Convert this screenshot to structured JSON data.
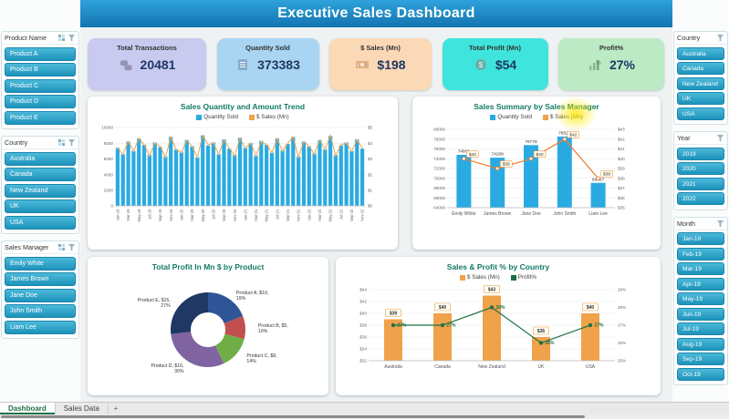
{
  "header": {
    "title": "Executive Sales Dashboard"
  },
  "kpis": [
    {
      "label": "Total Transactions",
      "value": "20481",
      "icon": "coins-icon",
      "bg": "#C9CAEF"
    },
    {
      "label": "Quantity Sold",
      "value": "373383",
      "icon": "clipboard-icon",
      "bg": "#A9D5F2"
    },
    {
      "label": "$ Sales (Mn)",
      "value": "$198",
      "icon": "banknote-icon",
      "bg": "#FBD9B6"
    },
    {
      "label": "Total Profit (Mn)",
      "value": "$54",
      "icon": "dollar-coin-icon",
      "bg": "#3FE5DC"
    },
    {
      "label": "Profit%",
      "value": "27%",
      "icon": "percent-chart-icon",
      "bg": "#BBEAC5"
    }
  ],
  "slicers": {
    "left": [
      {
        "title": "Product Name",
        "items": [
          "Product A",
          "Product B",
          "Product C",
          "Product D",
          "Product E"
        ]
      },
      {
        "title": "Country",
        "items": [
          "Australia",
          "Canada",
          "New Zealand",
          "UK",
          "USA"
        ]
      },
      {
        "title": "Sales Manager",
        "items": [
          "Emily White",
          "James Brown",
          "Jane Doe",
          "John Smith",
          "Liam Lee"
        ]
      }
    ],
    "right": [
      {
        "title": "Country",
        "items": [
          "Australia",
          "Canada",
          "New Zealand",
          "UK",
          "USA"
        ]
      },
      {
        "title": "Year",
        "items": [
          "2019",
          "2020",
          "2021",
          "2022"
        ]
      },
      {
        "title": "Month",
        "items": [
          "Jan-19",
          "Feb-19",
          "Mar-19",
          "Apr-19",
          "May-19",
          "Jun-19",
          "Jul-19",
          "Aug-19",
          "Sep-19",
          "Oct-19"
        ]
      }
    ]
  },
  "tabs": {
    "items": [
      "Dashboard",
      "Sales Data"
    ],
    "active_index": 0,
    "add_label": "+"
  },
  "colors": {
    "banner_top": "#2EA2DB",
    "banner_bottom": "#1374B0",
    "bar_blue": "#29ABE2",
    "line_orange": "#F0A24B",
    "line_green": "#1E7145",
    "slicer_teal": "#1D93BB",
    "chart_title": "#117A65"
  },
  "chart_data": [
    {
      "id": "trend",
      "type": "bar",
      "title": "Sales Quantity and Amount Trend",
      "legend": [
        "Quantity Sold",
        "$ Sales (Mn)"
      ],
      "x": [
        "Jan-19",
        "Feb-19",
        "Mar-19",
        "Apr-19",
        "May-19",
        "Jun-19",
        "Jul-19",
        "Aug-19",
        "Sep-19",
        "Oct-19",
        "Nov-19",
        "Dec-19",
        "Jan-20",
        "Feb-20",
        "Mar-20",
        "Apr-20",
        "May-20",
        "Jun-20",
        "Jul-20",
        "Aug-20",
        "Sep-20",
        "Oct-20",
        "Nov-20",
        "Dec-20",
        "Jan-21",
        "Feb-21",
        "Mar-21",
        "Apr-21",
        "May-21",
        "Jun-21",
        "Jul-21",
        "Aug-21",
        "Sep-21",
        "Oct-21",
        "Nov-21",
        "Dec-21",
        "Jan-22",
        "Feb-22",
        "Mar-22",
        "Apr-22",
        "May-22",
        "Jun-22",
        "Jul-22",
        "Aug-22",
        "Sep-22",
        "Oct-22",
        "Nov-22"
      ],
      "series": [
        {
          "name": "Quantity Sold",
          "type": "bar",
          "axis": "left",
          "values": [
            7400,
            6600,
            8200,
            7000,
            8600,
            7800,
            6500,
            8100,
            7500,
            6300,
            8800,
            7200,
            6900,
            8400,
            7600,
            6200,
            9000,
            7700,
            8100,
            6600,
            8500,
            7300,
            6500,
            8700,
            7400,
            8000,
            6400,
            8300,
            7800,
            6800,
            8600,
            7100,
            7900,
            8800,
            6300,
            8200,
            7600,
            6700,
            8400,
            7200,
            8900,
            6500,
            7700,
            8100,
            7000,
            8500,
            7300
          ]
        },
        {
          "name": "$ Sales (Mn)",
          "type": "line",
          "axis": "right",
          "values": [
            3.7,
            3.3,
            4.1,
            3.5,
            4.3,
            3.9,
            3.2,
            4.0,
            3.8,
            3.1,
            4.4,
            3.6,
            3.4,
            4.2,
            3.8,
            3.1,
            4.5,
            3.9,
            4.0,
            3.3,
            4.2,
            3.7,
            3.2,
            4.3,
            3.7,
            4.0,
            3.2,
            4.1,
            3.9,
            3.4,
            4.3,
            3.5,
            4.0,
            4.4,
            3.1,
            4.1,
            3.8,
            3.3,
            4.2,
            3.6,
            4.5,
            3.2,
            3.9,
            4.0,
            3.5,
            4.2,
            3.7
          ]
        }
      ],
      "ylim_left": [
        0,
        10000
      ],
      "ytick_left": 2000,
      "ylim_right": [
        0,
        5
      ],
      "ytick_right": 1,
      "grid": true,
      "legend_position": "top",
      "x_label_every": 2
    },
    {
      "id": "manager",
      "type": "bar",
      "title": "Sales Summary by Sales Manager",
      "legend": [
        "Quantity Sold",
        "$ Sales (Mn)"
      ],
      "categories": [
        "Emily White",
        "James Brown",
        "Jane Doe",
        "John Smith",
        "Liam Lee"
      ],
      "series": [
        {
          "name": "Quantity Sold",
          "type": "bar",
          "values": [
            74801,
            74208,
            76778,
            78534,
            69067
          ],
          "labels": [
            "74801",
            "74208",
            "76778",
            "78534",
            "69067"
          ]
        },
        {
          "name": "$ Sales (Mn)",
          "type": "line",
          "values": [
            40,
            39,
            40,
            42,
            38
          ],
          "labels": [
            "$40",
            "$39",
            "$40",
            "$42",
            "$38"
          ]
        }
      ],
      "ylim_left": [
        64000,
        80000
      ],
      "ytick_left": 2000,
      "ylim_right": [
        35,
        43
      ],
      "ytick_right": 1,
      "grid": true,
      "legend_position": "top"
    },
    {
      "id": "product_profit",
      "type": "pie",
      "title": "Total Profit In Mn $ by Product",
      "donut": true,
      "slices": [
        {
          "label": "Product A",
          "value_mn": 10,
          "pct": 19,
          "color": "#2F5597"
        },
        {
          "label": "Product B",
          "value_mn": 5,
          "pct": 10,
          "color": "#C0504D"
        },
        {
          "label": "Product C",
          "value_mn": 8,
          "pct": 14,
          "color": "#70AD47"
        },
        {
          "label": "Product D",
          "value_mn": 16,
          "pct": 30,
          "color": "#8064A2"
        },
        {
          "label": "Product E",
          "value_mn": 15,
          "pct": 27,
          "color": "#1F3864"
        }
      ]
    },
    {
      "id": "country",
      "type": "bar",
      "title": "Sales & Profit % by Country",
      "legend": [
        "$ Sales (Mn)",
        "Profit%"
      ],
      "categories": [
        "Australia",
        "Canada",
        "New Zealand",
        "UK",
        "USA"
      ],
      "series": [
        {
          "name": "$ Sales (Mn)",
          "type": "bar",
          "values": [
            39,
            40,
            43,
            36,
            40
          ],
          "labels": [
            "$39",
            "$40",
            "$43",
            "$36",
            "$40"
          ]
        },
        {
          "name": "Profit%",
          "type": "line",
          "values": [
            27,
            27,
            28,
            26,
            27
          ],
          "labels": [
            "27%",
            "27%",
            "28%",
            "26%",
            "27%"
          ]
        }
      ],
      "ylim_left": [
        32,
        44
      ],
      "ytick_left": 2,
      "ylim_right": [
        25,
        29
      ],
      "ytick_right": 1,
      "grid": true,
      "legend_position": "top"
    }
  ]
}
